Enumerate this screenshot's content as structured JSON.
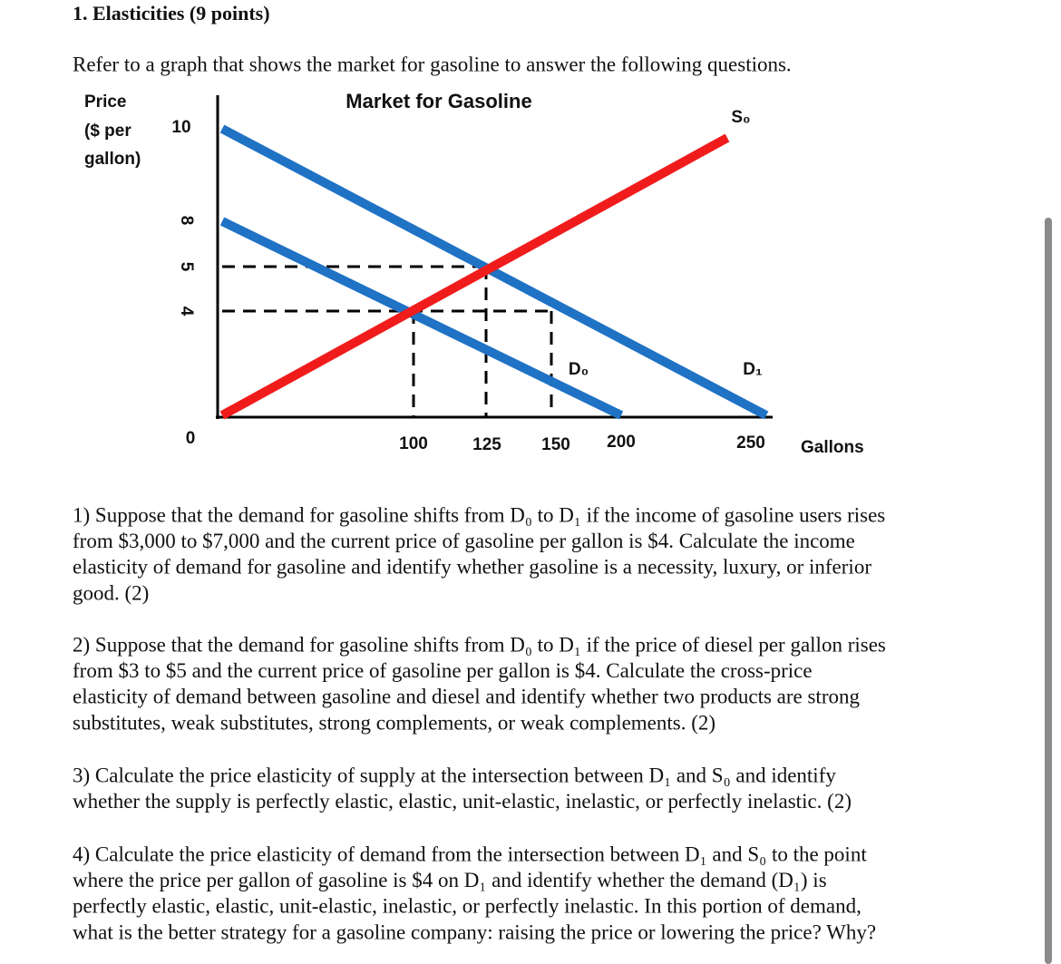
{
  "header": {
    "title": "1. Elasticities (9 points)"
  },
  "intro": "Refer to a graph that shows the market for gasoline to answer the following questions.",
  "figure": {
    "title": "Market for Gasoline",
    "y_axis_label": [
      "Price",
      "($ per",
      "gallon)"
    ],
    "y_ticks": [
      "10",
      "8",
      "5",
      "4",
      "0"
    ],
    "x_ticks": [
      "100",
      "125",
      "150",
      "200",
      "250"
    ],
    "x_axis_label": "Gallons",
    "curve_labels": [
      "S₀",
      "D₀",
      "D₁"
    ]
  },
  "questions": [
    {
      "lines": [
        "1) Suppose that the demand for gasoline shifts from D₀ to D₁ if the income of gasoline users rises",
        "from $3,000 to $7,000 and the current price of gasoline per gallon is $4. Calculate the income",
        "elasticity of demand for gasoline and identify whether gasoline is a necessity, luxury, or inferior",
        "good. (2)"
      ]
    },
    {
      "lines": [
        "2) Suppose that the demand for gasoline shifts from D₀ to D₁ if the price of diesel per gallon rises",
        "from $3 to $5 and the current price of gasoline per gallon is $4. Calculate the cross-price",
        "elasticity of demand between gasoline and diesel and identify whether two products are strong",
        "substitutes, weak substitutes, strong complements, or weak complements. (2)"
      ]
    },
    {
      "lines": [
        "3) Calculate the price elasticity of supply at the intersection between D₁ and S₀ and identify",
        "whether the supply is perfectly elastic, elastic, unit-elastic, inelastic, or perfectly inelastic. (2)"
      ]
    },
    {
      "lines": [
        "4) Calculate the price elasticity of demand from the intersection between D₁ and S₀ to the point",
        "where the price per gallon of gasoline is $4 on D₁ and identify whether the demand (D₁) is",
        "perfectly elastic, elastic, unit-elastic, inelastic, or perfectly inelastic. In this portion of demand,",
        "what is the better strategy for a gasoline company: raising the price or lowering the price? Why?"
      ]
    }
  ]
}
